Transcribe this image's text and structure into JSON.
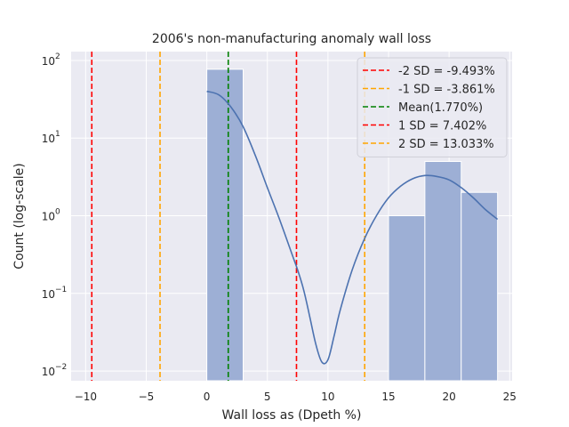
{
  "chart_data": {
    "type": "bar",
    "title": "2006's non-manufacturing anomaly wall loss",
    "xlabel": "Wall loss as (Dpeth %)",
    "ylabel": "Count (log-scale)",
    "xlim": [
      -11.2,
      25.2
    ],
    "ylim": [
      0.0075,
      130
    ],
    "yscale": "log",
    "grid": true,
    "legend_position": "top-right",
    "x_ticks": [
      -10,
      -5,
      0,
      5,
      10,
      15,
      20,
      25
    ],
    "x_tick_labels": [
      "−10",
      "−5",
      "0",
      "5",
      "10",
      "15",
      "20",
      "25"
    ],
    "y_ticks": [
      0.01,
      0.1,
      1,
      10,
      100
    ],
    "y_tick_labels": [
      {
        "base": "10",
        "exp": "−2"
      },
      {
        "base": "10",
        "exp": "−1"
      },
      {
        "base": "10",
        "exp": "0"
      },
      {
        "base": "10",
        "exp": "1"
      },
      {
        "base": "10",
        "exp": "2"
      }
    ],
    "bars": [
      {
        "x0": 0,
        "x1": 3,
        "count": 77
      },
      {
        "x0": 15,
        "x1": 18,
        "count": 1
      },
      {
        "x0": 18,
        "x1": 21,
        "count": 5
      },
      {
        "x0": 21,
        "x1": 24,
        "count": 2
      }
    ],
    "bar_color": "#9dafd5",
    "kde": {
      "color": "#4c72b0",
      "x": [
        0,
        1,
        2,
        3,
        4,
        5,
        6,
        7,
        7.5,
        8,
        8.5,
        9,
        9.5,
        10,
        10.5,
        11,
        12,
        13,
        14,
        15,
        16,
        17,
        18,
        19,
        20,
        21,
        22,
        23,
        24
      ],
      "y": [
        40,
        36,
        25,
        14,
        6,
        2.3,
        0.9,
        0.33,
        0.2,
        0.11,
        0.05,
        0.022,
        0.013,
        0.014,
        0.028,
        0.06,
        0.2,
        0.5,
        1.0,
        1.7,
        2.4,
        3.0,
        3.3,
        3.2,
        2.9,
        2.3,
        1.7,
        1.2,
        0.9
      ]
    },
    "vlines": [
      {
        "label": "-2 SD = -9.493%",
        "x": -9.493,
        "color": "#ff0000"
      },
      {
        "label": "-1 SD = -3.861%",
        "x": -3.861,
        "color": "#ffa500"
      },
      {
        "label": "Mean(1.770%)",
        "x": 1.77,
        "color": "#008000"
      },
      {
        "label": "1 SD = 7.402%",
        "x": 7.402,
        "color": "#ff0000"
      },
      {
        "label": "2 SD = 13.033%",
        "x": 13.033,
        "color": "#ffa500"
      }
    ]
  }
}
